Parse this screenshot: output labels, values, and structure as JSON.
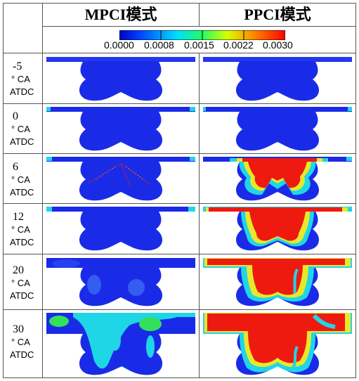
{
  "header": {
    "col1": "MPCI模式",
    "col2": "PPCI模式"
  },
  "colorbar": {
    "ticks": [
      "0.0000",
      "0.0008",
      "0.0015",
      "0.0022",
      "0.0030"
    ],
    "min": 0.0,
    "max": 0.003
  },
  "rows": [
    {
      "num": "-5",
      "unit": "° CA",
      "ref": "ATDC"
    },
    {
      "num": "0",
      "unit": "° CA",
      "ref": "ATDC"
    },
    {
      "num": "6",
      "unit": "° CA",
      "ref": "ATDC"
    },
    {
      "num": "12",
      "unit": "° CA",
      "ref": "ATDC"
    },
    {
      "num": "20",
      "unit": "° CA",
      "ref": "ATDC"
    },
    {
      "num": "30",
      "unit": "° CA",
      "ref": "ATDC"
    }
  ],
  "colors": {
    "deep_blue": "#1a2be8",
    "cyan": "#1fd6e6",
    "green": "#33e05a",
    "yellow": "#e8e82a",
    "red": "#ee1a10"
  }
}
